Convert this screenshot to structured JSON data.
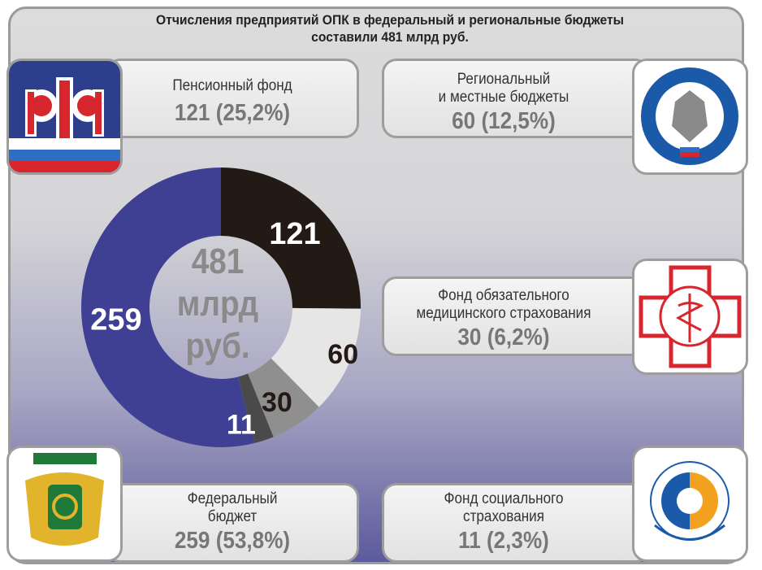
{
  "title_line1": "Отчисления предприятий ОПК в федеральный и региональные бюджеты",
  "title_line2": "составили 481 млрд руб.",
  "center": {
    "line1": "481",
    "line2": "млрд",
    "line3": "руб."
  },
  "cards": {
    "pension": {
      "label1": "Пенсионный фонд",
      "label2": "",
      "value": "121 (25,2%)"
    },
    "regional": {
      "label1": "Региональный",
      "label2": "и местные бюджеты",
      "value": "60 (12,5%)"
    },
    "medical": {
      "label1": "Фонд обязательного",
      "label2": "медицинского страхования",
      "value": "30 (6,2%)"
    },
    "federal": {
      "label1": "Федеральный",
      "label2": "бюджет",
      "value": "259 (53,8%)"
    },
    "social": {
      "label1": "Фонд социального",
      "label2": "страхования",
      "value": "11 (2,3%)"
    }
  },
  "logos": {
    "pension": "pfr-logo",
    "tax": "tax-service-logo",
    "medical": "medical-fund-logo",
    "federal": "treasury-logo",
    "social": "social-fund-logo"
  },
  "colors": {
    "pension": "#231a16",
    "regional": "#e6e6e6",
    "medical": "#8f8f8f",
    "social": "#4a4a4a",
    "federal": "#3f3f93"
  },
  "chart_data": {
    "type": "pie",
    "title": "Отчисления предприятий ОПК в федеральный и региональные бюджеты составили 481 млрд руб.",
    "total": 481,
    "series": [
      {
        "name": "Пенсионный фонд",
        "value": 121,
        "label": "121"
      },
      {
        "name": "Региональный и местные бюджеты",
        "value": 60,
        "label": "60"
      },
      {
        "name": "Фонд обязательного медицинского страхования",
        "value": 30,
        "label": "30"
      },
      {
        "name": "Фонд социального страхования",
        "value": 11,
        "label": "11"
      },
      {
        "name": "Федеральный бюджет",
        "value": 259,
        "label": "259"
      }
    ]
  }
}
